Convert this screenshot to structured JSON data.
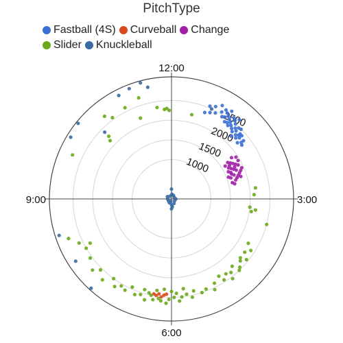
{
  "chart_data": {
    "type": "scatter",
    "subtype": "polar",
    "title": "PitchType",
    "legend_position": "top-left",
    "angular_axis": {
      "ticks": [
        "12:00",
        "3:00",
        "6:00",
        "9:00"
      ],
      "unit": "clock",
      "range_hours": [
        0,
        12
      ]
    },
    "radial_axis": {
      "ticks": [
        1000,
        1500,
        2000,
        2500
      ],
      "range": [
        0,
        3100
      ],
      "grid": true
    },
    "series": [
      {
        "name": "Fastball (4S)",
        "color": "#3b6fd6",
        "points": [
          {
            "clock": 1.05,
            "spin": 2650
          },
          {
            "clock": 1.1,
            "spin": 2600
          },
          {
            "clock": 1.15,
            "spin": 2550
          },
          {
            "clock": 1.2,
            "spin": 2500
          },
          {
            "clock": 1.25,
            "spin": 2450
          },
          {
            "clock": 1.3,
            "spin": 2400
          },
          {
            "clock": 1.35,
            "spin": 2350
          },
          {
            "clock": 1.4,
            "spin": 2300
          },
          {
            "clock": 1.45,
            "spin": 2380
          },
          {
            "clock": 1.5,
            "spin": 2300
          },
          {
            "clock": 1.55,
            "spin": 2250
          },
          {
            "clock": 1.6,
            "spin": 2320
          },
          {
            "clock": 1.65,
            "spin": 2200
          },
          {
            "clock": 1.7,
            "spin": 2280
          },
          {
            "clock": 1.0,
            "spin": 2550
          },
          {
            "clock": 0.95,
            "spin": 2700
          },
          {
            "clock": 1.15,
            "spin": 2700
          },
          {
            "clock": 1.25,
            "spin": 2600
          },
          {
            "clock": 1.35,
            "spin": 2500
          },
          {
            "clock": 1.45,
            "spin": 2480
          },
          {
            "clock": 1.55,
            "spin": 2400
          },
          {
            "clock": 1.3,
            "spin": 2560
          },
          {
            "clock": 1.2,
            "spin": 2400
          },
          {
            "clock": 1.4,
            "spin": 2420
          },
          {
            "clock": 1.6,
            "spin": 2400
          },
          {
            "clock": 1.1,
            "spin": 2480
          },
          {
            "clock": 1.5,
            "spin": 2500
          },
          {
            "clock": 0.75,
            "spin": 2550
          },
          {
            "clock": 0.85,
            "spin": 2600
          },
          {
            "clock": 1.05,
            "spin": 2450
          },
          {
            "clock": 1.75,
            "spin": 2250
          },
          {
            "clock": 1.7,
            "spin": 2350
          },
          {
            "clock": 1.45,
            "spin": 2200
          },
          {
            "clock": 1.25,
            "spin": 2350
          },
          {
            "clock": 1.35,
            "spin": 2650
          },
          {
            "clock": 0.9,
            "spin": 2450
          },
          {
            "clock": 0.8,
            "spin": 2400
          },
          {
            "clock": 0.7,
            "spin": 2350
          },
          {
            "clock": 1.15,
            "spin": 2380
          },
          {
            "clock": 1.55,
            "spin": 2350
          }
        ]
      },
      {
        "name": "Curveball",
        "color": "#d94a1e",
        "points": [
          {
            "clock": 6.15,
            "spin": 2450
          },
          {
            "clock": 6.2,
            "spin": 2500
          },
          {
            "clock": 6.1,
            "spin": 2420
          },
          {
            "clock": 6.25,
            "spin": 2430
          },
          {
            "clock": 6.3,
            "spin": 2480
          },
          {
            "clock": 6.35,
            "spin": 2450
          }
        ]
      },
      {
        "name": "Change",
        "color": "#a020a8",
        "points": [
          {
            "clock": 1.9,
            "spin": 1700
          },
          {
            "clock": 1.95,
            "spin": 1750
          },
          {
            "clock": 2.0,
            "spin": 1800
          },
          {
            "clock": 2.05,
            "spin": 1850
          },
          {
            "clock": 2.1,
            "spin": 1700
          },
          {
            "clock": 2.15,
            "spin": 1750
          },
          {
            "clock": 2.2,
            "spin": 1800
          },
          {
            "clock": 2.25,
            "spin": 1650
          },
          {
            "clock": 2.3,
            "spin": 1700
          },
          {
            "clock": 2.35,
            "spin": 1600
          },
          {
            "clock": 2.0,
            "spin": 1950
          },
          {
            "clock": 1.85,
            "spin": 1850
          },
          {
            "clock": 2.1,
            "spin": 1900
          },
          {
            "clock": 2.2,
            "spin": 1950
          },
          {
            "clock": 2.3,
            "spin": 1850
          },
          {
            "clock": 2.4,
            "spin": 1750
          },
          {
            "clock": 2.15,
            "spin": 1600
          },
          {
            "clock": 2.05,
            "spin": 1650
          },
          {
            "clock": 1.95,
            "spin": 1600
          },
          {
            "clock": 2.25,
            "spin": 1900
          },
          {
            "clock": 2.45,
            "spin": 1700
          },
          {
            "clock": 2.5,
            "spin": 1600
          },
          {
            "clock": 2.35,
            "spin": 1800
          },
          {
            "clock": 1.9,
            "spin": 1950
          },
          {
            "clock": 2.0,
            "spin": 1700
          },
          {
            "clock": 2.2,
            "spin": 1650
          },
          {
            "clock": 2.4,
            "spin": 1850
          },
          {
            "clock": 2.1,
            "spin": 1800
          },
          {
            "clock": 2.3,
            "spin": 1550
          },
          {
            "clock": 2.55,
            "spin": 1650
          }
        ]
      },
      {
        "name": "Slider",
        "color": "#6aaa1a",
        "points": [
          {
            "clock": 11.9,
            "spin": 2300
          },
          {
            "clock": 11.85,
            "spin": 2280
          },
          {
            "clock": 11.7,
            "spin": 2350
          },
          {
            "clock": 11.95,
            "spin": 2250
          },
          {
            "clock": 11.3,
            "spin": 2200
          },
          {
            "clock": 11.1,
            "spin": 2600
          },
          {
            "clock": 10.8,
            "spin": 2550
          },
          {
            "clock": 10.5,
            "spin": 2250
          },
          {
            "clock": 10.45,
            "spin": 2150
          },
          {
            "clock": 10.7,
            "spin": 2700
          },
          {
            "clock": 11.4,
            "spin": 2700
          },
          {
            "clock": 0.45,
            "spin": 2200
          },
          {
            "clock": 3.3,
            "spin": 2050
          },
          {
            "clock": 3.25,
            "spin": 2150
          },
          {
            "clock": 3.2,
            "spin": 2000
          },
          {
            "clock": 2.9,
            "spin": 2100
          },
          {
            "clock": 2.75,
            "spin": 2150
          },
          {
            "clock": 3.5,
            "spin": 2500
          },
          {
            "clock": 4.0,
            "spin": 2250
          },
          {
            "clock": 4.1,
            "spin": 2400
          },
          {
            "clock": 4.2,
            "spin": 2300
          },
          {
            "clock": 4.3,
            "spin": 2450
          },
          {
            "clock": 4.35,
            "spin": 2300
          },
          {
            "clock": 4.4,
            "spin": 2350
          },
          {
            "clock": 4.5,
            "spin": 2450
          },
          {
            "clock": 4.55,
            "spin": 2500
          },
          {
            "clock": 4.6,
            "spin": 2300
          },
          {
            "clock": 4.7,
            "spin": 2400
          },
          {
            "clock": 4.75,
            "spin": 2550
          },
          {
            "clock": 4.8,
            "spin": 2350
          },
          {
            "clock": 4.9,
            "spin": 2450
          },
          {
            "clock": 4.95,
            "spin": 2300
          },
          {
            "clock": 5.1,
            "spin": 2400
          },
          {
            "clock": 5.15,
            "spin": 2550
          },
          {
            "clock": 5.3,
            "spin": 2450
          },
          {
            "clock": 5.4,
            "spin": 2500
          },
          {
            "clock": 5.55,
            "spin": 2400
          },
          {
            "clock": 5.6,
            "spin": 2550
          },
          {
            "clock": 5.7,
            "spin": 2450
          },
          {
            "clock": 5.75,
            "spin": 2300
          },
          {
            "clock": 5.8,
            "spin": 2500
          },
          {
            "clock": 5.85,
            "spin": 2600
          },
          {
            "clock": 5.9,
            "spin": 2400
          },
          {
            "clock": 5.95,
            "spin": 2500
          },
          {
            "clock": 6.0,
            "spin": 2350
          },
          {
            "clock": 6.05,
            "spin": 2550
          },
          {
            "clock": 6.1,
            "spin": 2650
          },
          {
            "clock": 6.15,
            "spin": 2300
          },
          {
            "clock": 6.2,
            "spin": 2600
          },
          {
            "clock": 6.25,
            "spin": 2550
          },
          {
            "clock": 6.3,
            "spin": 2350
          },
          {
            "clock": 6.35,
            "spin": 2600
          },
          {
            "clock": 6.4,
            "spin": 2500
          },
          {
            "clock": 6.45,
            "spin": 2450
          },
          {
            "clock": 6.5,
            "spin": 2650
          },
          {
            "clock": 6.55,
            "spin": 2400
          },
          {
            "clock": 6.6,
            "spin": 2550
          },
          {
            "clock": 6.7,
            "spin": 2600
          },
          {
            "clock": 6.8,
            "spin": 2450
          },
          {
            "clock": 6.9,
            "spin": 2600
          },
          {
            "clock": 7.0,
            "spin": 2550
          },
          {
            "clock": 7.1,
            "spin": 2650
          },
          {
            "clock": 7.2,
            "spin": 2500
          },
          {
            "clock": 7.35,
            "spin": 2700
          },
          {
            "clock": 7.5,
            "spin": 2550
          },
          {
            "clock": 7.6,
            "spin": 2700
          },
          {
            "clock": 7.8,
            "spin": 2550
          },
          {
            "clock": 8.0,
            "spin": 2500
          },
          {
            "clock": 8.05,
            "spin": 2350
          },
          {
            "clock": 8.15,
            "spin": 2600
          },
          {
            "clock": 8.3,
            "spin": 2800
          },
          {
            "clock": 9.8,
            "spin": 2750
          }
        ]
      },
      {
        "name": "Knuckleball",
        "color": "#3a6aa0",
        "points": [
          {
            "clock": 0.2,
            "spin": 120
          },
          {
            "clock": 1.0,
            "spin": 100
          },
          {
            "clock": 2.0,
            "spin": 80
          },
          {
            "clock": 3.0,
            "spin": 110
          },
          {
            "clock": 4.0,
            "spin": 90
          },
          {
            "clock": 5.0,
            "spin": 130
          },
          {
            "clock": 6.0,
            "spin": 150
          },
          {
            "clock": 7.0,
            "spin": 110
          },
          {
            "clock": 8.0,
            "spin": 90
          },
          {
            "clock": 9.0,
            "spin": 100
          },
          {
            "clock": 10.0,
            "spin": 120
          },
          {
            "clock": 11.0,
            "spin": 80
          },
          {
            "clock": 6.0,
            "spin": 250
          },
          {
            "clock": 5.8,
            "spin": 200
          },
          {
            "clock": 0.0,
            "spin": 250
          },
          {
            "clock": 6.5,
            "spin": 60
          },
          {
            "clock": 11.1,
            "spin": 2950
          },
          {
            "clock": 11.3,
            "spin": 3000
          },
          {
            "clock": 11.5,
            "spin": 3050
          },
          {
            "clock": 11.6,
            "spin": 2900
          },
          {
            "clock": 10.3,
            "spin": 3050
          },
          {
            "clock": 10.05,
            "spin": 3000
          },
          {
            "clock": 10.5,
            "spin": 2400
          },
          {
            "clock": 7.9,
            "spin": 2900
          },
          {
            "clock": 7.4,
            "spin": 3050
          },
          {
            "clock": 8.4,
            "spin": 3000
          },
          {
            "clock": 0.8,
            "spin": 2500
          }
        ]
      }
    ]
  }
}
